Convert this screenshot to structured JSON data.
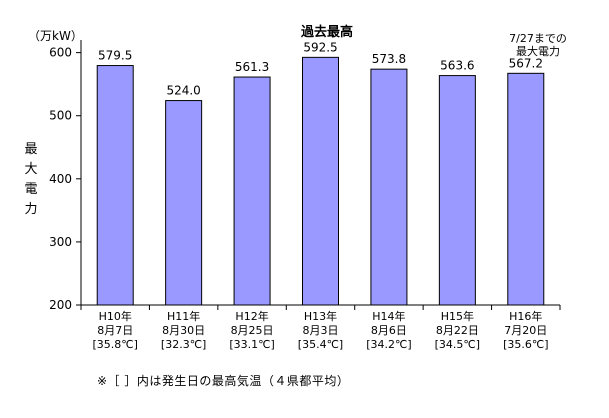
{
  "chart_data": {
    "type": "bar",
    "title": "過去最高",
    "unit_label": "（万kW）",
    "ylabel": "最大電力",
    "ylim": [
      200,
      620
    ],
    "yticks": [
      200,
      300,
      400,
      500,
      600
    ],
    "grid": false,
    "bar_color": "#9999ff",
    "categories": [
      {
        "year": "H10年",
        "date": "8月7日",
        "temp": "[35.8℃]"
      },
      {
        "year": "H11年",
        "date": "8月30日",
        "temp": "[32.3℃]"
      },
      {
        "year": "H12年",
        "date": "8月25日",
        "temp": "[33.1℃]"
      },
      {
        "year": "H13年",
        "date": "8月3日",
        "temp": "[35.4℃]"
      },
      {
        "year": "H14年",
        "date": "8月6日",
        "temp": "[34.2℃]"
      },
      {
        "year": "H15年",
        "date": "8月22日",
        "temp": "[34.5℃]"
      },
      {
        "year": "H16年",
        "date": "7月20日",
        "temp": "[35.6℃]"
      }
    ],
    "values": [
      579.5,
      524.0,
      561.3,
      592.5,
      573.8,
      563.6,
      567.2
    ],
    "value_labels": [
      "579.5",
      "524.0",
      "561.3",
      "592.5",
      "573.8",
      "563.6",
      "567.2"
    ],
    "annotation": [
      "7/27までの",
      "最大電力"
    ],
    "footnote": "※［ ］内は発生日の最高気温（４県都平均）"
  }
}
